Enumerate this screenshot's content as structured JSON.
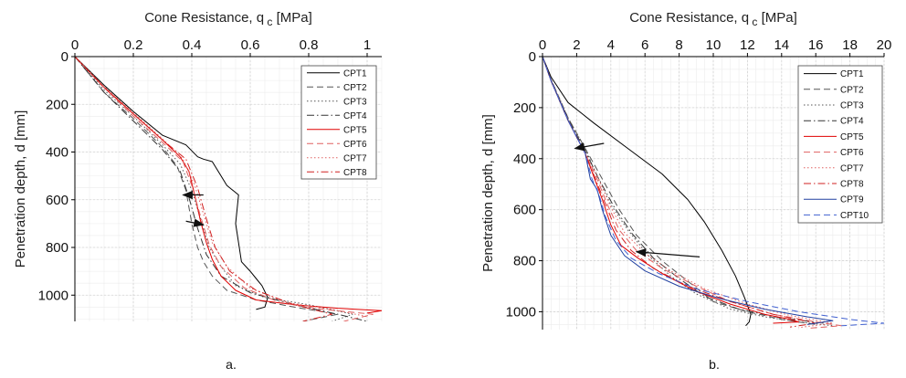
{
  "chart_data": [
    {
      "type": "line",
      "panel_label": "a.",
      "xlabel_main": "Cone Resistance, q",
      "xlabel_sub": "c",
      "xlabel_unit": " [MPa]",
      "ylabel": "Penetration depth, d [mm]",
      "x_axis_position": "top",
      "y_reversed": true,
      "xlim": [
        0,
        1.05
      ],
      "ylim": [
        0,
        1110
      ],
      "x_ticks": [
        0,
        0.2,
        0.4,
        0.6,
        0.8,
        1
      ],
      "x_tick_labels": [
        "0",
        "0.2",
        "0.4",
        "0.6",
        "0.8",
        "1"
      ],
      "y_ticks": [
        0,
        200,
        400,
        600,
        800,
        1000
      ],
      "y_tick_labels": [
        "0",
        "200",
        "400",
        "600",
        "800",
        "1000"
      ],
      "grid": true,
      "legend_position": "top-right",
      "series": [
        {
          "name": "CPT1",
          "color": "#000000",
          "dash": "",
          "x": [
            0,
            0.1,
            0.2,
            0.3,
            0.38,
            0.42,
            0.44,
            0.47,
            0.5,
            0.52,
            0.56,
            0.55,
            0.56,
            0.57,
            0.6,
            0.62,
            0.64,
            0.66,
            0.65,
            0.62
          ],
          "y": [
            0,
            120,
            230,
            330,
            370,
            420,
            430,
            440,
            500,
            540,
            580,
            700,
            780,
            860,
            900,
            930,
            960,
            1010,
            1050,
            1060
          ]
        },
        {
          "name": "CPT2",
          "color": "#555555",
          "dash": "7,4",
          "x": [
            0,
            0.1,
            0.2,
            0.3,
            0.35,
            0.38,
            0.4,
            0.42,
            0.44,
            0.47,
            0.52,
            0.62,
            0.75,
            0.9,
            0.78
          ],
          "y": [
            0,
            150,
            260,
            380,
            460,
            560,
            700,
            800,
            860,
            920,
            980,
            1020,
            1050,
            1080,
            1110
          ]
        },
        {
          "name": "CPT3",
          "color": "#555555",
          "dash": "1.5,2.5",
          "x": [
            0,
            0.1,
            0.2,
            0.3,
            0.36,
            0.4,
            0.43,
            0.46,
            0.5,
            0.55,
            0.65,
            0.8,
            0.95,
            0.88
          ],
          "y": [
            0,
            140,
            250,
            370,
            450,
            560,
            680,
            800,
            880,
            960,
            1010,
            1040,
            1080,
            1110
          ]
        },
        {
          "name": "CPT4",
          "color": "#333333",
          "dash": "8,3,1.5,3",
          "x": [
            0,
            0.1,
            0.2,
            0.3,
            0.36,
            0.39,
            0.42,
            0.45,
            0.5,
            0.6,
            0.75,
            0.9,
            1.0
          ],
          "y": [
            0,
            150,
            270,
            390,
            480,
            590,
            720,
            830,
            920,
            990,
            1040,
            1080,
            1110
          ]
        },
        {
          "name": "CPT5",
          "color": "#e00000",
          "dash": "",
          "x": [
            0,
            0.1,
            0.2,
            0.3,
            0.36,
            0.39,
            0.41,
            0.43,
            0.45,
            0.47,
            0.5,
            0.55,
            0.62,
            0.75,
            0.9,
            1.05,
            1.0
          ],
          "y": [
            0,
            130,
            240,
            350,
            420,
            480,
            580,
            690,
            780,
            850,
            920,
            980,
            1020,
            1040,
            1055,
            1065,
            1075
          ]
        },
        {
          "name": "CPT6",
          "color": "#e06060",
          "dash": "7,4",
          "x": [
            0,
            0.1,
            0.2,
            0.3,
            0.37,
            0.4,
            0.43,
            0.46,
            0.5,
            0.58,
            0.7,
            0.85,
            1.02,
            0.92
          ],
          "y": [
            0,
            130,
            250,
            360,
            440,
            540,
            670,
            790,
            880,
            970,
            1030,
            1060,
            1080,
            1110
          ]
        },
        {
          "name": "CPT7",
          "color": "#e06060",
          "dash": "1.5,2.5",
          "x": [
            0,
            0.1,
            0.2,
            0.3,
            0.37,
            0.41,
            0.44,
            0.47,
            0.52,
            0.6,
            0.72,
            0.88,
            1.0
          ],
          "y": [
            0,
            125,
            235,
            345,
            430,
            540,
            660,
            780,
            880,
            970,
            1030,
            1060,
            1090
          ]
        },
        {
          "name": "CPT8",
          "color": "#d02020",
          "dash": "8,3,1.5,3",
          "x": [
            0,
            0.1,
            0.2,
            0.3,
            0.38,
            0.42,
            0.45,
            0.48,
            0.53,
            0.62,
            0.75,
            0.88,
            0.78
          ],
          "y": [
            0,
            128,
            240,
            350,
            430,
            550,
            680,
            800,
            900,
            980,
            1040,
            1080,
            1110
          ]
        }
      ],
      "annotations": [
        {
          "type": "arrow",
          "from": [
            0.44,
            580
          ],
          "to": [
            0.37,
            580
          ]
        },
        {
          "type": "arrow",
          "from": [
            0.38,
            690
          ],
          "to": [
            0.44,
            705
          ]
        }
      ]
    },
    {
      "type": "line",
      "panel_label": "b.",
      "xlabel_main": "Cone Resistance, q",
      "xlabel_sub": "c",
      "xlabel_unit": " [MPa]",
      "ylabel": "Penetration depth, d [mm]",
      "x_axis_position": "top",
      "y_reversed": true,
      "xlim": [
        0,
        20
      ],
      "ylim": [
        0,
        1070
      ],
      "x_ticks": [
        0,
        2,
        4,
        6,
        8,
        10,
        12,
        14,
        16,
        18,
        20
      ],
      "x_tick_labels": [
        "0",
        "2",
        "4",
        "6",
        "8",
        "10",
        "12",
        "14",
        "16",
        "18",
        "20"
      ],
      "y_ticks": [
        0,
        200,
        400,
        600,
        800,
        1000
      ],
      "y_tick_labels": [
        "0",
        "200",
        "400",
        "600",
        "800",
        "1000"
      ],
      "grid": true,
      "legend_position": "top-right",
      "series": [
        {
          "name": "CPT1",
          "color": "#000000",
          "dash": "",
          "x": [
            0,
            0.5,
            1.5,
            3,
            5,
            7,
            8.5,
            9.5,
            10.5,
            11.3,
            11.8,
            12.2,
            12.1,
            11.9
          ],
          "y": [
            0,
            80,
            180,
            260,
            360,
            460,
            560,
            650,
            760,
            860,
            940,
            1010,
            1040,
            1055
          ]
        },
        {
          "name": "CPT2",
          "color": "#555555",
          "dash": "7,4",
          "x": [
            0,
            0.5,
            1.5,
            2.5,
            3.5,
            4.5,
            5.5,
            7,
            8.5,
            10,
            12,
            14,
            16
          ],
          "y": [
            0,
            90,
            240,
            360,
            480,
            600,
            700,
            800,
            880,
            960,
            1000,
            1030,
            1050
          ]
        },
        {
          "name": "CPT3",
          "color": "#555555",
          "dash": "1.5,2.5",
          "x": [
            0,
            0.5,
            1.5,
            2.5,
            3.2,
            4,
            5,
            6.2,
            7.5,
            9,
            11,
            13,
            15,
            17
          ],
          "y": [
            0,
            90,
            240,
            360,
            470,
            580,
            680,
            780,
            860,
            930,
            990,
            1020,
            1040,
            1055
          ]
        },
        {
          "name": "CPT4",
          "color": "#333333",
          "dash": "8,3,1.5,3",
          "x": [
            0,
            0.5,
            1.5,
            2.5,
            3.3,
            4.2,
            5.2,
            6.5,
            8,
            9.5,
            11.5,
            14,
            16.5
          ],
          "y": [
            0,
            95,
            245,
            370,
            480,
            590,
            690,
            790,
            870,
            940,
            990,
            1025,
            1045
          ]
        },
        {
          "name": "CPT5",
          "color": "#e00000",
          "dash": "",
          "x": [
            0,
            0.5,
            1.5,
            2.5,
            3,
            3.5,
            4,
            4.6,
            5.6,
            7,
            9,
            11,
            13,
            14.5,
            15,
            13.5
          ],
          "y": [
            0,
            95,
            250,
            380,
            470,
            560,
            660,
            740,
            790,
            850,
            920,
            970,
            1010,
            1030,
            1040,
            1045
          ]
        },
        {
          "name": "CPT6",
          "color": "#e06060",
          "dash": "7,4",
          "x": [
            0,
            0.5,
            1.5,
            2.5,
            3.2,
            3.8,
            4.5,
            5.5,
            7,
            9,
            11,
            13.5,
            16,
            17.5,
            15.5
          ],
          "y": [
            0,
            95,
            250,
            380,
            480,
            580,
            680,
            760,
            830,
            900,
            960,
            1010,
            1040,
            1055,
            1065
          ]
        },
        {
          "name": "CPT7",
          "color": "#e06060",
          "dash": "1.5,2.5",
          "x": [
            0,
            0.5,
            1.5,
            2.5,
            3.3,
            4,
            4.8,
            6,
            7.5,
            9.5,
            12,
            14.5,
            17,
            15
          ],
          "y": [
            0,
            95,
            250,
            380,
            480,
            590,
            690,
            770,
            840,
            910,
            970,
            1015,
            1045,
            1062
          ]
        },
        {
          "name": "CPT8",
          "color": "#d02020",
          "dash": "8,3,1.5,3",
          "x": [
            0,
            0.5,
            1.5,
            2.5,
            3.1,
            3.7,
            4.3,
            5.2,
            6.5,
            8.5,
            11,
            13.5,
            16,
            14.5
          ],
          "y": [
            0,
            95,
            250,
            380,
            480,
            580,
            680,
            760,
            830,
            900,
            960,
            1010,
            1045,
            1060
          ]
        },
        {
          "name": "CPT9",
          "color": "#2040a0",
          "dash": "",
          "x": [
            0,
            0.5,
            1.5,
            2.5,
            2.8,
            3.2,
            3.5,
            4,
            4.8,
            6,
            8,
            10.5,
            13,
            15.5,
            17,
            15.5
          ],
          "y": [
            0,
            95,
            250,
            380,
            480,
            520,
            600,
            700,
            780,
            840,
            900,
            950,
            990,
            1020,
            1035,
            1050
          ]
        },
        {
          "name": "CPT10",
          "color": "#4060d0",
          "dash": "7,4",
          "x": [
            0,
            0.5,
            1.5,
            2.5,
            2.9,
            3.3,
            3.7,
            4.3,
            5.2,
            6.8,
            9,
            12,
            15,
            18,
            20,
            17.5
          ],
          "y": [
            0,
            95,
            250,
            380,
            480,
            540,
            630,
            720,
            790,
            850,
            910,
            960,
            1000,
            1030,
            1045,
            1055
          ]
        }
      ],
      "annotations": [
        {
          "type": "arrow",
          "from": [
            3.6,
            340
          ],
          "to": [
            1.9,
            360
          ]
        },
        {
          "type": "arrow",
          "from": [
            9.2,
            785
          ],
          "to": [
            5.5,
            765
          ]
        }
      ]
    }
  ]
}
